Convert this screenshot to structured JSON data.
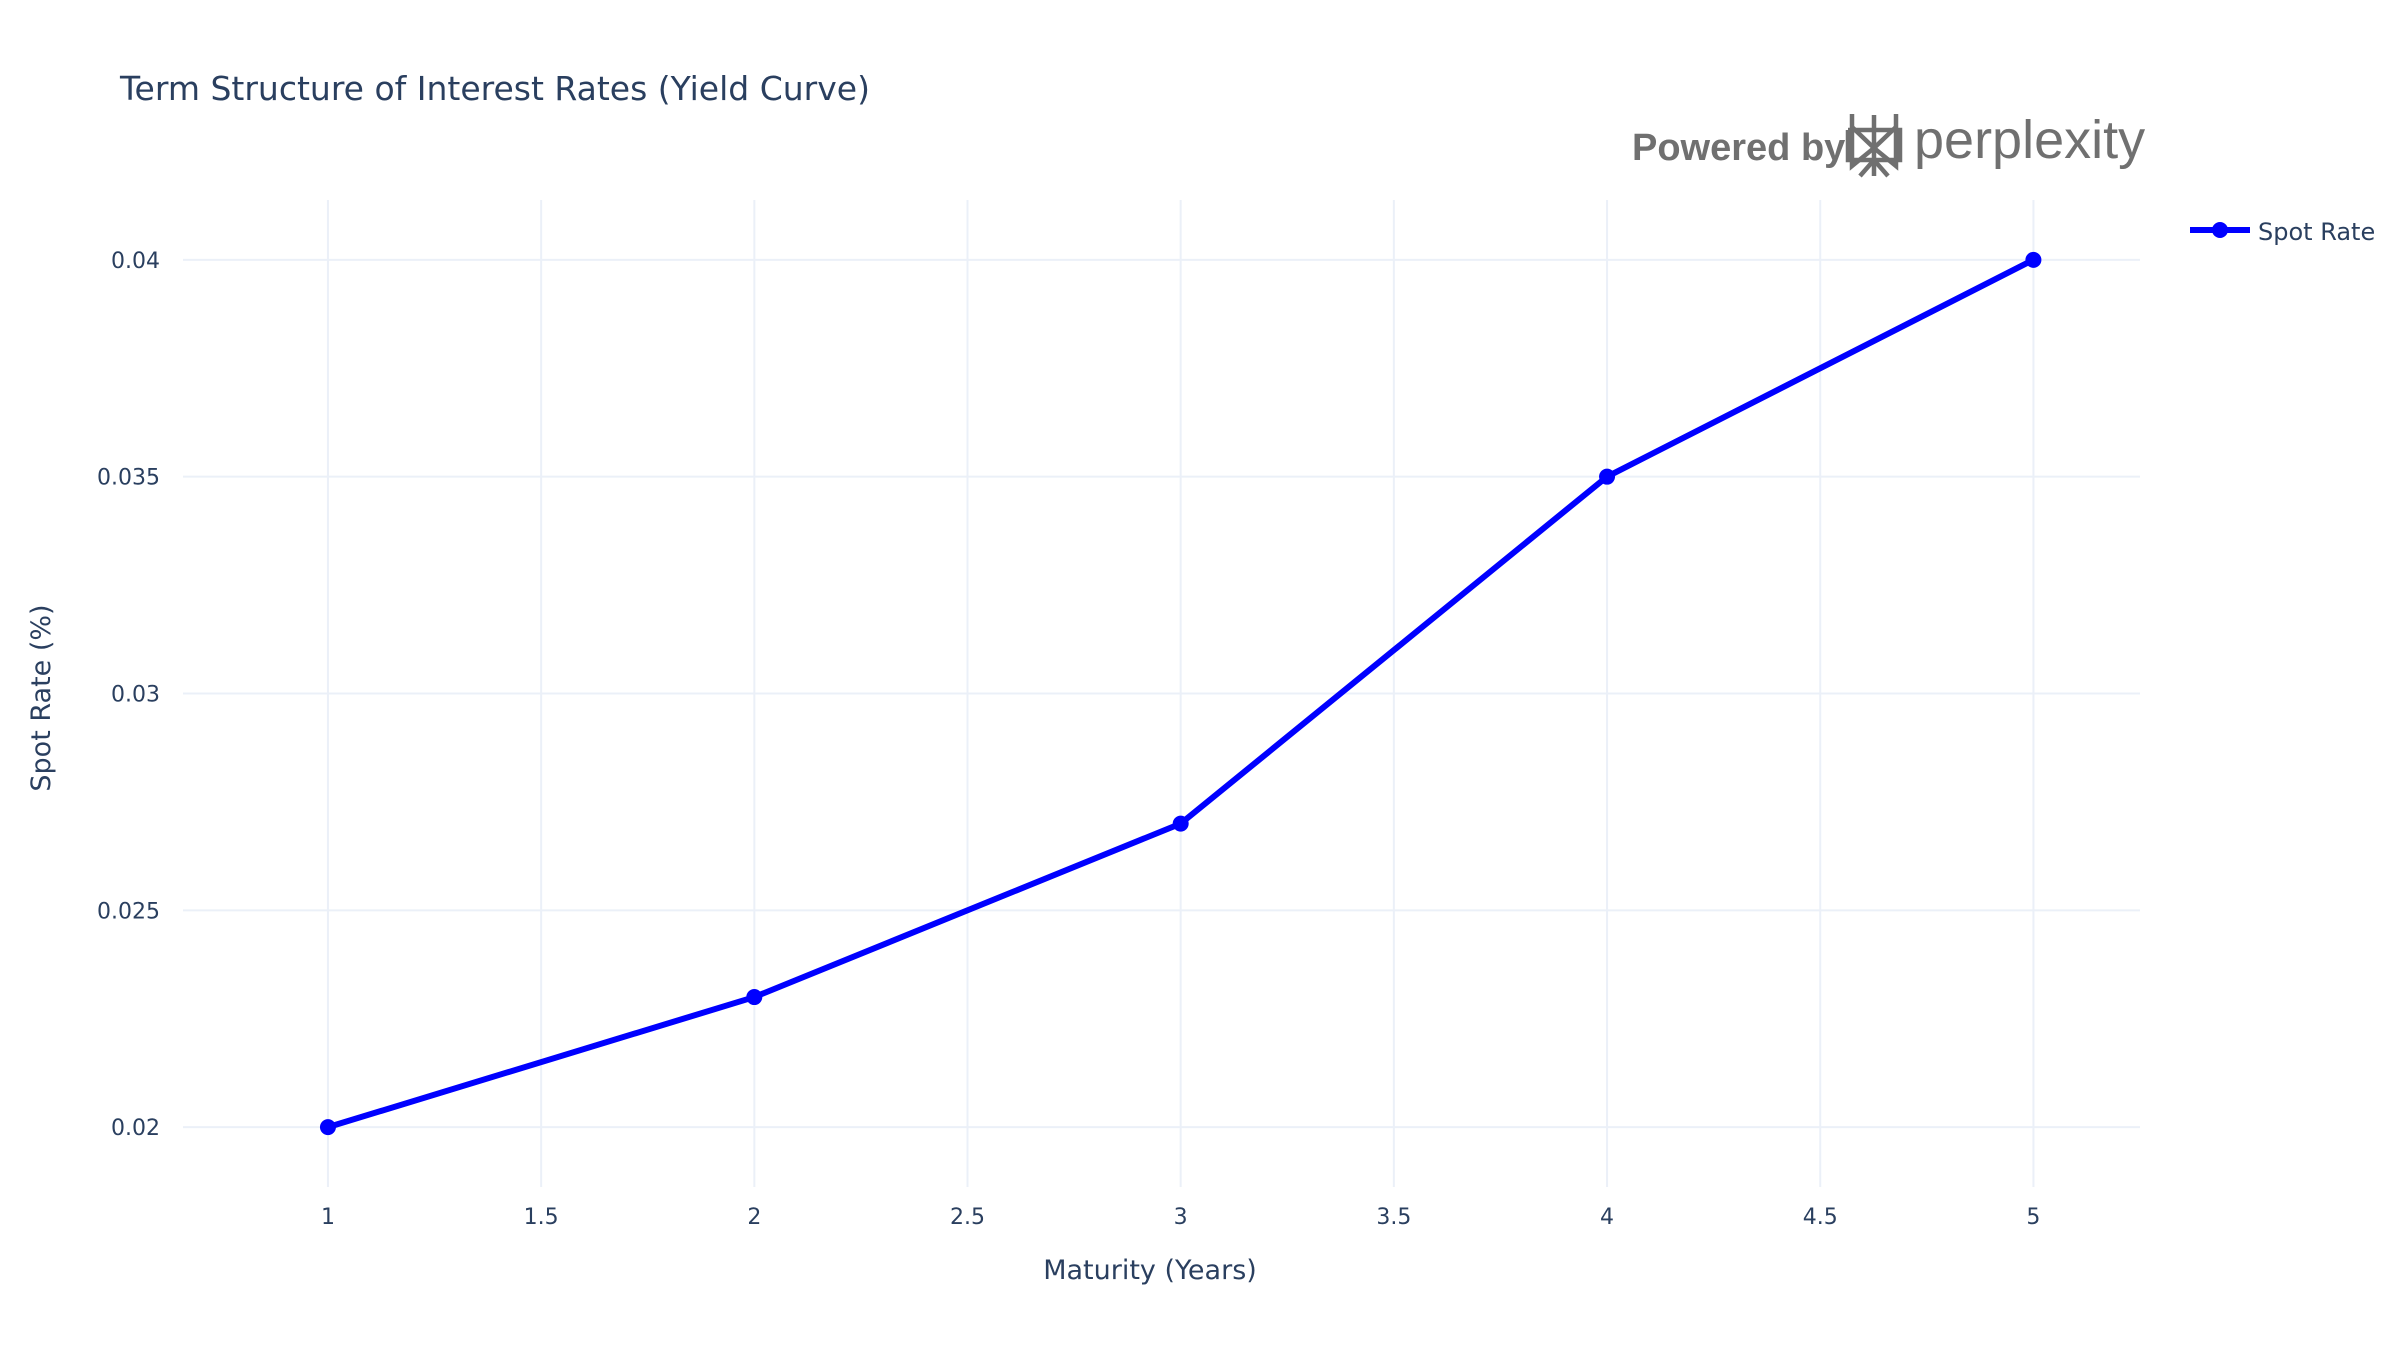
{
  "chart_data": {
    "type": "line",
    "title": "Term Structure of Interest Rates (Yield Curve)",
    "xlabel": "Maturity (Years)",
    "ylabel": "Spot Rate (%)",
    "x": [
      1,
      2,
      3,
      4,
      5
    ],
    "series": [
      {
        "name": "Spot Rate",
        "values": [
          0.02,
          0.023,
          0.027,
          0.035,
          0.04
        ],
        "color": "#0000ff",
        "mode": "lines+markers"
      }
    ],
    "xlim": [
      0.66,
      5.25
    ],
    "ylim": [
      0.01862,
      0.04138
    ],
    "xticks": [
      1,
      1.5,
      2,
      2.5,
      3,
      3.5,
      4,
      4.5,
      5
    ],
    "xtick_labels": [
      "1",
      "1.5",
      "2",
      "2.5",
      "3",
      "3.5",
      "4",
      "4.5",
      "5"
    ],
    "yticks": [
      0.02,
      0.025,
      0.03,
      0.035,
      0.04
    ],
    "ytick_labels": [
      "0.02",
      "0.025",
      "0.03",
      "0.035",
      "0.04"
    ],
    "grid": true,
    "legend_position": "top-right"
  },
  "watermark": {
    "powered_by": "Powered by",
    "brand": "perplexity",
    "color": "#707070"
  },
  "colors": {
    "text": "#2a3f5f",
    "grid": "#ebf0f8",
    "background": "#ffffff"
  }
}
